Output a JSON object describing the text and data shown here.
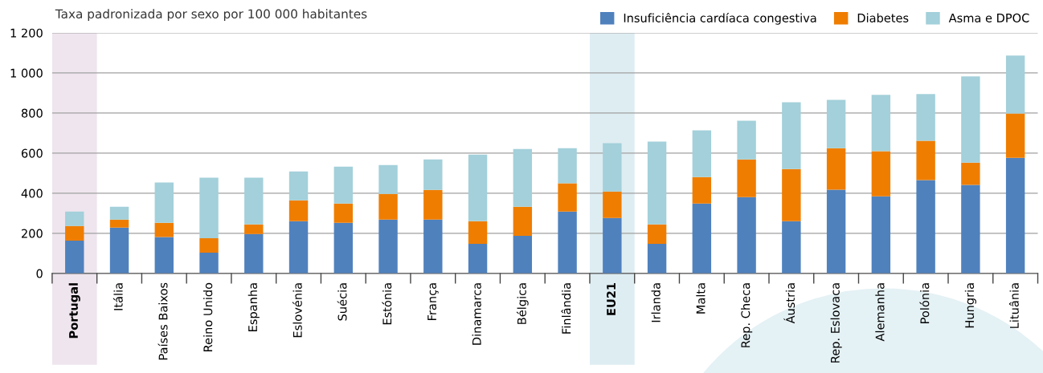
{
  "chart_data": {
    "type": "bar",
    "stacked": true,
    "title": "Taxa padronizada por sexo por 100 000 habitantes",
    "categories": [
      "Portugal",
      "Itália",
      "Países Baixos",
      "Reino Unido",
      "Espanha",
      "Eslovénia",
      "Suécia",
      "Estónia",
      "França",
      "Dinamarca",
      "Bélgica",
      "Finlândia",
      "EU21",
      "Irlanda",
      "Malta",
      "Rep. Checa",
      "Áustria",
      "Rep. Eslovaca",
      "Alemanha",
      "Polónia",
      "Hungria",
      "Lituânia"
    ],
    "series": [
      {
        "name": "Insuficiência cardíaca congestiva",
        "color": "#4f81bd",
        "values": [
          163,
          228,
          181,
          103,
          196,
          260,
          252,
          268,
          268,
          147,
          187,
          308,
          276,
          147,
          348,
          380,
          260,
          417,
          384,
          465,
          441,
          577
        ]
      },
      {
        "name": "Diabetes",
        "color": "#ef7d00",
        "values": [
          73,
          40,
          71,
          72,
          48,
          104,
          96,
          128,
          148,
          113,
          145,
          141,
          132,
          97,
          133,
          189,
          261,
          208,
          226,
          197,
          112,
          221
        ]
      },
      {
        "name": "Asma e DPOC",
        "color": "#a3d0da",
        "values": [
          72,
          64,
          201,
          302,
          233,
          145,
          185,
          145,
          153,
          333,
          289,
          176,
          242,
          414,
          233,
          193,
          333,
          241,
          281,
          233,
          430,
          289
        ]
      }
    ],
    "ylim": [
      0,
      1200
    ],
    "yticks": [
      0,
      200,
      400,
      600,
      800,
      {
        "value": 1000,
        "label": "1 000"
      },
      {
        "value": 1200,
        "label": "1 200"
      }
    ],
    "grid": "y",
    "legend": "top right",
    "bands": [
      {
        "axis": "x",
        "from": "Portugal",
        "to": "Portugal",
        "color": "#efe5ee"
      },
      {
        "axis": "x",
        "from": "EU21",
        "to": "EU21",
        "color": "#deedf2"
      }
    ]
  }
}
